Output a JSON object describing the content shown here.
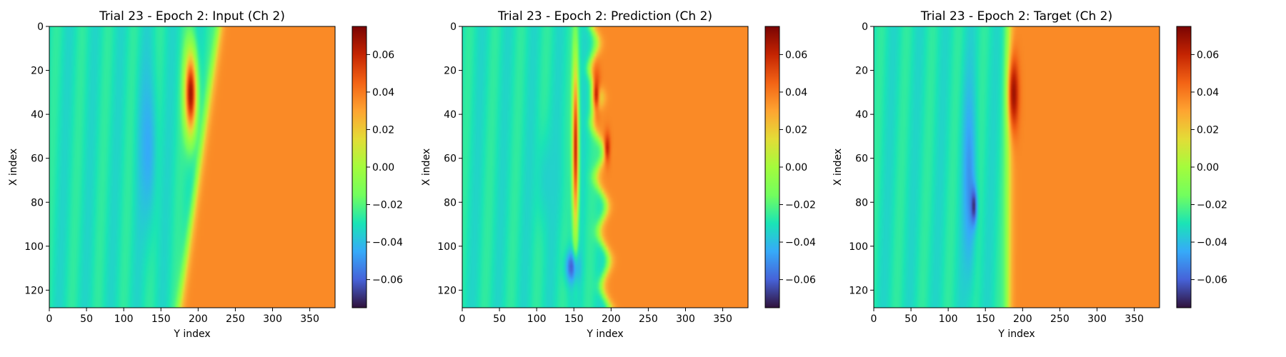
{
  "chart_data": [
    {
      "type": "heatmap",
      "title": "Trial 23 - Epoch 2: Input (Ch 2)",
      "xlabel": "Y index",
      "ylabel": "X index",
      "xlim": [
        0,
        384
      ],
      "ylim": [
        128,
        0
      ],
      "xticks": [
        0,
        50,
        100,
        150,
        200,
        250,
        300,
        350
      ],
      "yticks": [
        0,
        20,
        40,
        60,
        80,
        100,
        120
      ],
      "colormap": "turbo",
      "colorbar": {
        "min": -0.075,
        "max": 0.075,
        "ticks": [
          "0.06",
          "0.04",
          "0.02",
          "0.00",
          "−0.02",
          "−0.04",
          "−0.06"
        ]
      },
      "fields": {
        "front_y_top": 228,
        "front_y_bottom": 175,
        "front_wiggle": 0,
        "features": [
          {
            "kind": "blob",
            "y": 132,
            "x": 55,
            "sy": 8,
            "sx": 25,
            "value": -0.045
          },
          {
            "kind": "blob",
            "y": 190,
            "x": 30,
            "sy": 6,
            "sx": 14,
            "value": 0.068
          }
        ]
      }
    },
    {
      "type": "heatmap",
      "title": "Trial 23 - Epoch 2: Prediction (Ch 2)",
      "xlabel": "Y index",
      "ylabel": "X index",
      "xlim": [
        0,
        384
      ],
      "ylim": [
        128,
        0
      ],
      "xticks": [
        0,
        50,
        100,
        150,
        200,
        250,
        300,
        350
      ],
      "yticks": [
        0,
        20,
        40,
        60,
        80,
        100,
        120
      ],
      "colormap": "turbo",
      "colorbar": {
        "min": -0.075,
        "max": 0.075,
        "ticks": [
          "0.06",
          "0.04",
          "0.02",
          "0.00",
          "−0.02",
          "−0.04",
          "−0.06"
        ]
      },
      "fields": {
        "front_y_top": 175,
        "front_y_bottom": 195,
        "front_wiggle": 6,
        "features": [
          {
            "kind": "blob",
            "y": 115,
            "x": 70,
            "sy": 12,
            "sx": 15,
            "value": -0.035
          },
          {
            "kind": "blob",
            "y": 148,
            "x": 110,
            "sy": 6,
            "sx": 5,
            "value": -0.065
          },
          {
            "kind": "blob",
            "y": 152,
            "x": 55,
            "sy": 3,
            "sx": 28,
            "value": 0.06
          },
          {
            "kind": "blob",
            "y": 180,
            "x": 30,
            "sy": 4,
            "sx": 8,
            "value": 0.06
          },
          {
            "kind": "blob",
            "y": 195,
            "x": 55,
            "sy": 3,
            "sx": 5,
            "value": 0.06
          }
        ]
      }
    },
    {
      "type": "heatmap",
      "title": "Trial 23 - Epoch 2: Target (Ch 2)",
      "xlabel": "Y index",
      "ylabel": "X index",
      "xlim": [
        0,
        384
      ],
      "ylim": [
        128,
        0
      ],
      "xticks": [
        0,
        50,
        100,
        150,
        200,
        250,
        300,
        350
      ],
      "yticks": [
        0,
        20,
        40,
        60,
        80,
        100,
        120
      ],
      "colormap": "turbo",
      "colorbar": {
        "min": -0.075,
        "max": 0.075,
        "ticks": [
          "0.06",
          "0.04",
          "0.02",
          "0.00",
          "−0.02",
          "−0.04",
          "−0.06"
        ]
      },
      "fields": {
        "front_y_top": 182,
        "front_y_bottom": 180,
        "front_wiggle": 0,
        "features": [
          {
            "kind": "blob",
            "y": 128,
            "x": 70,
            "sy": 6,
            "sx": 30,
            "value": -0.05
          },
          {
            "kind": "blob",
            "y": 134,
            "x": 82,
            "sy": 3,
            "sx": 6,
            "value": -0.07
          },
          {
            "kind": "blob",
            "y": 188,
            "x": 30,
            "sy": 5,
            "sx": 12,
            "value": 0.068
          }
        ]
      }
    }
  ]
}
